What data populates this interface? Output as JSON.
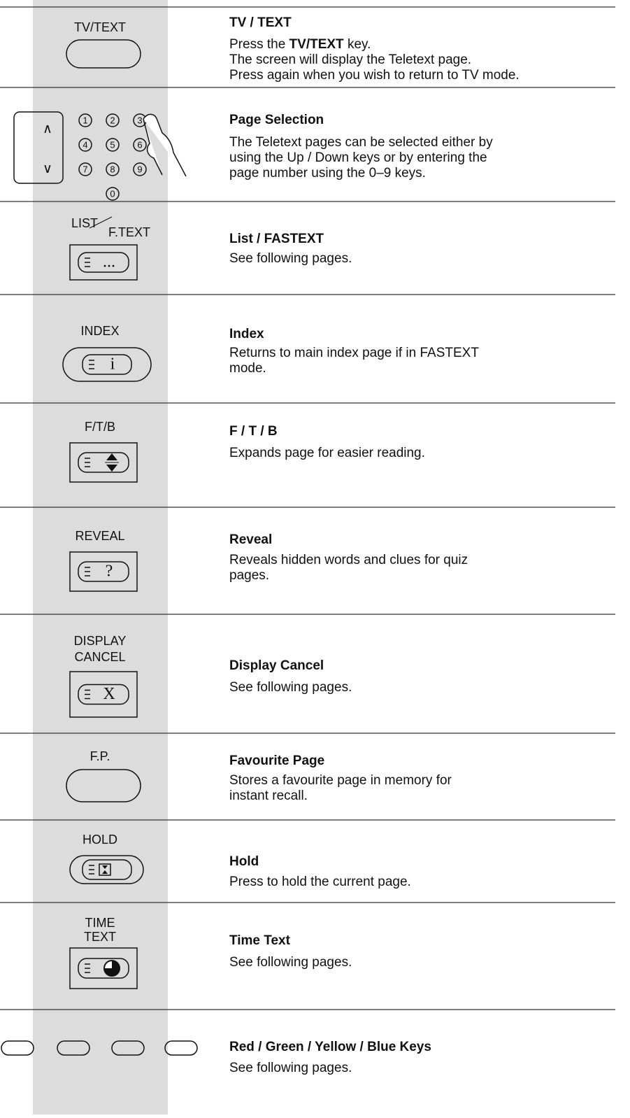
{
  "rows": [
    {
      "key_label": [
        "TV/TEXT"
      ],
      "title": "TV / TEXT",
      "description": [
        [
          "Press the ",
          "TV/TEXT",
          " key."
        ],
        "The screen will display the Teletext page.",
        "Press again when you wish to return to TV mode."
      ]
    },
    {
      "arrows": [
        "∧",
        "∨"
      ],
      "keys": [
        "1",
        "2",
        "3",
        "4",
        "5",
        "6",
        "7",
        "8",
        "9",
        "0"
      ],
      "title": "Page Selection",
      "description": [
        "The Teletext pages can be selected either by",
        "using the Up / Down keys  or by entering the",
        "page number using the 0–9 keys."
      ]
    },
    {
      "key_label": [
        "LIST",
        "F.TEXT"
      ],
      "icon_text": "...",
      "title": "List / FASTEXT",
      "description": [
        "See following pages."
      ]
    },
    {
      "key_label": [
        "INDEX"
      ],
      "icon_text": "i",
      "title": "Index",
      "description": [
        "Returns to main index page if in FASTEXT",
        "mode."
      ]
    },
    {
      "key_label": [
        "F/T/B"
      ],
      "title": "F / T / B",
      "description": [
        "Expands page for easier reading."
      ]
    },
    {
      "key_label": [
        "REVEAL"
      ],
      "icon_text": "?",
      "title": "Reveal",
      "description": [
        "Reveals hidden words and clues for quiz",
        "pages."
      ]
    },
    {
      "key_label": [
        "DISPLAY",
        "CANCEL"
      ],
      "icon_text": "X",
      "title": "Display Cancel",
      "description": [
        "See following pages."
      ]
    },
    {
      "key_label": [
        "F.P."
      ],
      "title": "Favourite Page",
      "description": [
        "Stores a favourite page in memory for",
        "instant recall."
      ]
    },
    {
      "key_label": [
        "HOLD"
      ],
      "title": "Hold",
      "description": [
        "Press to hold the current page."
      ]
    },
    {
      "key_label": [
        "TIME",
        "TEXT"
      ],
      "title": "Time Text",
      "description": [
        "See following pages."
      ]
    },
    {
      "title": "Red / Green / Yellow / Blue Keys",
      "description": [
        "See following pages."
      ]
    }
  ]
}
